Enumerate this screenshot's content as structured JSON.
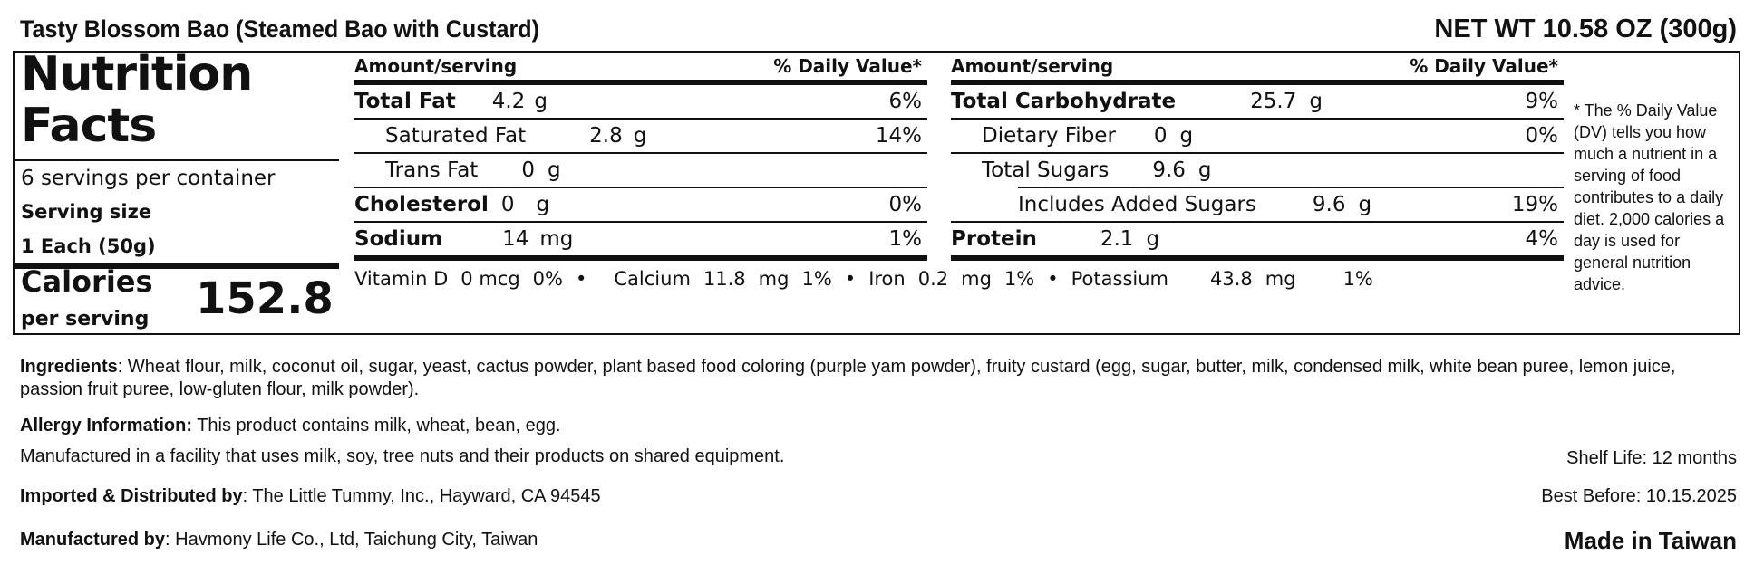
{
  "header": {
    "product_title": "Tasty Blossom Bao (Steamed Bao with Custard)",
    "net_weight": "NET WT 10.58 OZ (300g)"
  },
  "facts": {
    "title_line1": "Nutrition",
    "title_line2": "Facts",
    "servings_per_container": "6 servings per container",
    "serving_size_label": "Serving size",
    "serving_size_value": "1 Each (50g)",
    "calories_label": "Calories",
    "calories_sub": "per serving",
    "calories_value": "152.8"
  },
  "left_table": {
    "header_amount": "Amount/serving",
    "header_dv": "% Daily Value*",
    "rows": [
      {
        "name": "Total Fat",
        "amount": "4.2",
        "unit": "g",
        "dv": "6%"
      },
      {
        "name": "Saturated Fat",
        "amount": "2.8",
        "unit": "g",
        "dv": "14%"
      },
      {
        "name": "Trans Fat",
        "amount": "0",
        "unit": "g",
        "dv": ""
      },
      {
        "name": "Cholesterol",
        "amount": "0",
        "unit": "g",
        "dv": "0%"
      },
      {
        "name": "Sodium",
        "amount": "14",
        "unit": "mg",
        "dv": "1%"
      }
    ]
  },
  "right_table": {
    "header_amount": "Amount/serving",
    "header_dv": "% Daily Value*",
    "rows": [
      {
        "name": "Total Carbohydrate",
        "amount": "25.7",
        "unit": "g",
        "dv": "9%"
      },
      {
        "name": "Dietary Fiber",
        "amount": "0",
        "unit": "g",
        "dv": "0%"
      },
      {
        "name": "Total Sugars",
        "amount": "9.6",
        "unit": "g",
        "dv": ""
      },
      {
        "name": "Includes Added Sugars",
        "amount": "9.6",
        "unit": "g",
        "dv": "19%"
      },
      {
        "name": "Protein",
        "amount": "2.1",
        "unit": "g",
        "dv": "4%"
      }
    ]
  },
  "vitamins": {
    "vitd_name": "Vitamin D",
    "vitd_amount": "0 mcg",
    "vitd_dv": "0%",
    "calcium_name": "Calcium",
    "calcium_amount": "11.8",
    "calcium_unit": "mg",
    "calcium_dv": "1%",
    "iron_name": "Iron",
    "iron_amount": "0.2",
    "iron_unit": "mg",
    "iron_dv": "1%",
    "potassium_name": "Potassium",
    "potassium_amount": "43.8",
    "potassium_unit": "mg",
    "potassium_dv": "1%",
    "separator": "•"
  },
  "dv_note": "* The % Daily Value (DV) tells you how much a nutrient in a serving of food contributes to a daily diet. 2,000 calories a day is used for general nutrition advice.",
  "info": {
    "ingredients_label": "Ingredients",
    "ingredients_text": ": Wheat flour, milk, coconut oil, sugar, yeast, cactus powder, plant based food coloring (purple yam powder), fruity custard (egg, sugar, butter, milk, condensed milk, white bean puree, lemon juice, passion fruit puree, low-gluten flour, milk powder).",
    "allergy_label": "Allergy Information:",
    "allergy_text": " This product contains milk, wheat, bean, egg.",
    "facility_text": "Manufactured in a facility that uses milk, soy, tree nuts and their products on shared equipment.",
    "importer_label": "Imported & Distributed by",
    "importer_text": ": The Little Tummy, Inc., Hayward, CA 94545",
    "manufacturer_label": "Manufactured by",
    "manufacturer_text": ": Havmony Life Co., Ltd, Taichung City, Taiwan",
    "shelf_life": "Shelf Life: 12 months",
    "best_before": "Best Before: 10.15.2025",
    "made_in": "Made in Taiwan"
  }
}
